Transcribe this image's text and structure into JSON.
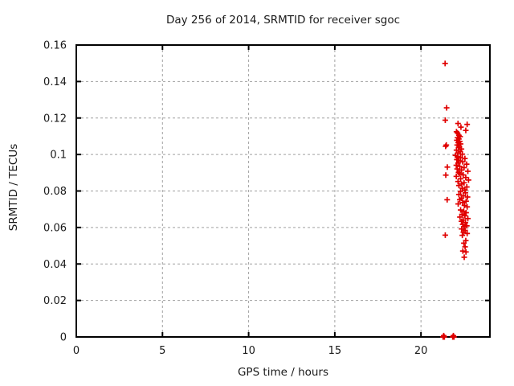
{
  "chart_data": {
    "type": "scatter",
    "title": "Day 256 of 2014, SRMTID for receiver sgoc",
    "xlabel": "GPS time / hours",
    "ylabel": "SRMTID / TECUs",
    "xlim": [
      0,
      24
    ],
    "ylim": [
      0,
      0.16
    ],
    "xticks": [
      [
        0,
        "0"
      ],
      [
        5,
        "5"
      ],
      [
        10,
        "10"
      ],
      [
        15,
        "15"
      ],
      [
        20,
        "20"
      ]
    ],
    "yticks": [
      [
        0,
        "0"
      ],
      [
        0.02,
        "0.02"
      ],
      [
        0.04,
        "0.04"
      ],
      [
        0.06,
        "0.06"
      ],
      [
        0.08,
        "0.08"
      ],
      [
        0.1,
        "0.1"
      ],
      [
        0.12,
        "0.12"
      ],
      [
        0.14,
        "0.14"
      ],
      [
        0.16,
        "0.16"
      ]
    ],
    "grid": "dashed",
    "legend_position": "none",
    "marker": "plus",
    "colors": {
      "marker": "#e00000",
      "grid": "#a0a0a0",
      "axis": "#000000",
      "text": "#1a1a1a",
      "background": "#ffffff"
    },
    "series": [
      {
        "name": "SRMTID",
        "points": [
          [
            21.4,
            0.1499
          ],
          [
            21.49,
            0.1256
          ],
          [
            21.41,
            0.1188
          ],
          [
            21.43,
            0.1045
          ],
          [
            21.47,
            0.1052
          ],
          [
            21.53,
            0.0931
          ],
          [
            21.44,
            0.0887
          ],
          [
            21.52,
            0.0752
          ],
          [
            21.41,
            0.0558
          ],
          [
            22.15,
            0.117
          ],
          [
            22.68,
            0.1165
          ],
          [
            22.32,
            0.115
          ],
          [
            22.6,
            0.1132
          ],
          [
            22.06,
            0.1125
          ],
          [
            22.12,
            0.1118
          ],
          [
            22.2,
            0.1105
          ],
          [
            22.27,
            0.1098
          ],
          [
            22.12,
            0.1092
          ],
          [
            22.2,
            0.1085
          ],
          [
            22.08,
            0.1078
          ],
          [
            22.25,
            0.1072
          ],
          [
            22.16,
            0.1065
          ],
          [
            22.3,
            0.1058
          ],
          [
            22.1,
            0.1052
          ],
          [
            22.22,
            0.1046
          ],
          [
            22.18,
            0.1038
          ],
          [
            22.35,
            0.103
          ],
          [
            22.06,
            0.1024
          ],
          [
            22.28,
            0.1016
          ],
          [
            22.15,
            0.1008
          ],
          [
            22.4,
            0.1002
          ],
          [
            22.0,
            0.0995
          ],
          [
            22.12,
            0.0989
          ],
          [
            22.3,
            0.0983
          ],
          [
            22.55,
            0.0978
          ],
          [
            22.08,
            0.0972
          ],
          [
            22.2,
            0.0966
          ],
          [
            22.42,
            0.096
          ],
          [
            22.15,
            0.0953
          ],
          [
            22.65,
            0.0947
          ],
          [
            22.05,
            0.0941
          ],
          [
            22.25,
            0.0935
          ],
          [
            22.5,
            0.0928
          ],
          [
            22.1,
            0.0921
          ],
          [
            22.35,
            0.0915
          ],
          [
            22.72,
            0.0908
          ],
          [
            22.18,
            0.0902
          ],
          [
            22.25,
            0.0895
          ],
          [
            22.45,
            0.0888
          ],
          [
            22.05,
            0.088
          ],
          [
            22.6,
            0.0874
          ],
          [
            22.3,
            0.0867
          ],
          [
            22.76,
            0.086
          ],
          [
            22.15,
            0.0852
          ],
          [
            22.5,
            0.0845
          ],
          [
            22.35,
            0.0838
          ],
          [
            22.2,
            0.083
          ],
          [
            22.66,
            0.0822
          ],
          [
            22.4,
            0.0815
          ],
          [
            22.55,
            0.0806
          ],
          [
            22.3,
            0.0798
          ],
          [
            22.58,
            0.079
          ],
          [
            22.2,
            0.0781
          ],
          [
            22.45,
            0.0774
          ],
          [
            22.7,
            0.0767
          ],
          [
            22.35,
            0.076
          ],
          [
            22.25,
            0.0752
          ],
          [
            22.62,
            0.0744
          ],
          [
            22.42,
            0.0737
          ],
          [
            22.16,
            0.0729
          ],
          [
            22.52,
            0.0721
          ],
          [
            22.68,
            0.0713
          ],
          [
            22.3,
            0.0696
          ],
          [
            22.48,
            0.0689
          ],
          [
            22.62,
            0.0681
          ],
          [
            22.38,
            0.0672
          ],
          [
            22.55,
            0.0664
          ],
          [
            22.26,
            0.0657
          ],
          [
            22.72,
            0.0649
          ],
          [
            22.45,
            0.0641
          ],
          [
            22.35,
            0.0634
          ],
          [
            22.58,
            0.0627
          ],
          [
            22.42,
            0.0617
          ],
          [
            22.66,
            0.0609
          ],
          [
            22.5,
            0.0604
          ],
          [
            22.36,
            0.0592
          ],
          [
            22.56,
            0.0584
          ],
          [
            22.46,
            0.0574
          ],
          [
            22.68,
            0.0567
          ],
          [
            22.4,
            0.0557
          ],
          [
            22.6,
            0.0528
          ],
          [
            22.49,
            0.0514
          ],
          [
            22.56,
            0.0494
          ],
          [
            22.43,
            0.0471
          ],
          [
            22.61,
            0.0466
          ],
          [
            22.51,
            0.0437
          ],
          [
            21.28,
            0.0
          ],
          [
            21.32,
            0.0007
          ],
          [
            21.36,
            0.0
          ],
          [
            21.84,
            0.0
          ],
          [
            21.88,
            0.0007
          ],
          [
            21.92,
            0.0
          ]
        ]
      }
    ]
  }
}
